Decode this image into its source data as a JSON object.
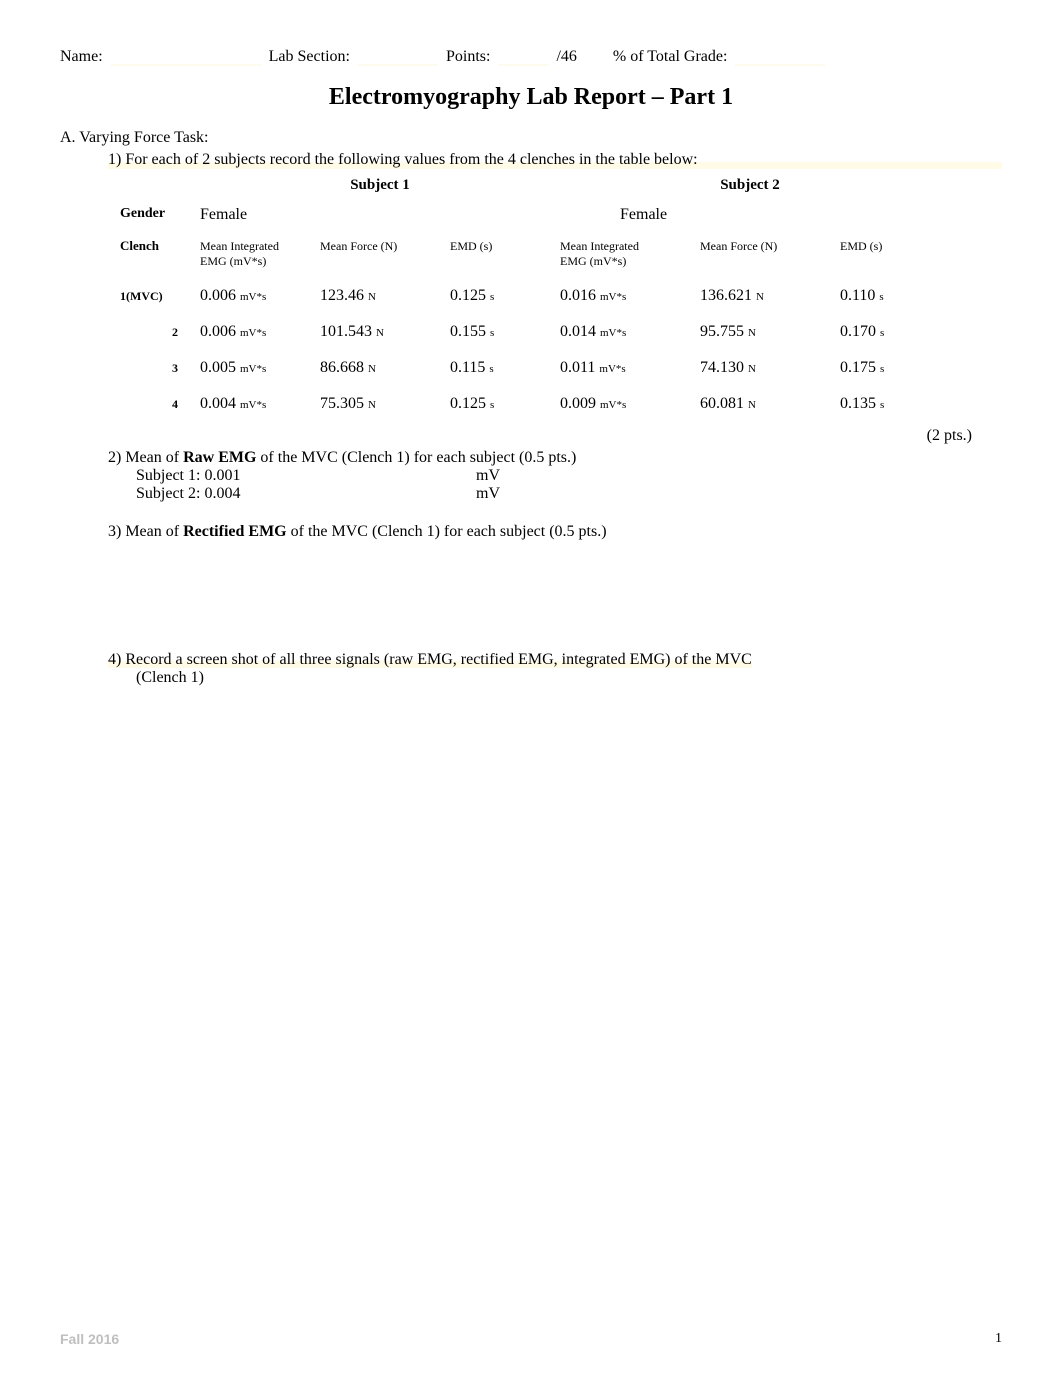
{
  "header": {
    "name_label": "Name:",
    "lab_section_label": "Lab Section:",
    "points_label": "Points:",
    "points_total": "/46",
    "pct_label": "% of Total Grade:"
  },
  "title": "Electromyography Lab Report – Part 1",
  "sectionA": {
    "heading": "A. Varying Force Task:",
    "q1": "1)  For each of 2 subjects record the following values from the 4 clenches in the table below:"
  },
  "table": {
    "subject1_label": "Subject 1",
    "subject2_label": "Subject 2",
    "gender_label": "Gender",
    "gender_s1": "Female",
    "gender_s2": "Female",
    "col_clench": "Clench",
    "col_mi": "Mean Integrated",
    "col_mi2": "EMG (mV*s)",
    "col_force": "Mean Force (N)",
    "col_emd": "EMD (s)",
    "rows": [
      {
        "label": "1(MVC)",
        "s1_mi": "0.006",
        "s1_mi_u": "mV*s",
        "s1_f": "123.46",
        "s1_f_u": "N",
        "s1_e": "0.125",
        "s1_e_u": "s",
        "s2_mi": "0.016",
        "s2_mi_u": "mV*s",
        "s2_f": "136.621",
        "s2_f_u": "N",
        "s2_e": "0.110",
        "s2_e_u": "s"
      },
      {
        "label": "2",
        "s1_mi": "0.006",
        "s1_mi_u": "mV*s",
        "s1_f": "101.543",
        "s1_f_u": "N",
        "s1_e": "0.155",
        "s1_e_u": "s",
        "s2_mi": "0.014",
        "s2_mi_u": "mV*s",
        "s2_f": "95.755",
        "s2_f_u": "N",
        "s2_e": "0.170",
        "s2_e_u": "s"
      },
      {
        "label": "3",
        "s1_mi": "0.005",
        "s1_mi_u": "mV*s",
        "s1_f": "86.668",
        "s1_f_u": "N",
        "s1_e": "0.115",
        "s1_e_u": "s",
        "s2_mi": "0.011",
        "s2_mi_u": "mV*s",
        "s2_f": "74.130",
        "s2_f_u": "N",
        "s2_e": "0.175",
        "s2_e_u": "s"
      },
      {
        "label": "4",
        "s1_mi": "0.004",
        "s1_mi_u": "mV*s",
        "s1_f": "75.305",
        "s1_f_u": "N",
        "s1_e": "0.125",
        "s1_e_u": "s",
        "s2_mi": "0.009",
        "s2_mi_u": "mV*s",
        "s2_f": "60.081",
        "s2_f_u": "N",
        "s2_e": "0.135",
        "s2_e_u": "s"
      }
    ]
  },
  "pts_note": "(2 pts.)",
  "q2": {
    "line": "2)  Mean of ",
    "bold": "Raw EMG",
    "rest": " of the MVC (Clench 1) for each subject (0.5 pts.)",
    "s1_label": "Subject 1: 0.001",
    "s1_unit": "mV",
    "s2_label": "Subject 2: 0.004",
    "s2_unit": "mV"
  },
  "q3": {
    "line": "3)  Mean of ",
    "bold": "Rectified EMG",
    "rest": " of the MVC (Clench 1) for each subject (0.5 pts.)"
  },
  "q4": {
    "line_a": "4)  Record a screen shot of all three signals (raw EMG, rectified EMG, integrated EMG) of the MVC",
    "line_b": "(Clench 1)"
  },
  "footer": {
    "semester": "Fall 2016",
    "page": "1"
  },
  "colors": {
    "text": "#000000",
    "footer_grey": "#bfbfbf",
    "background": "#ffffff"
  },
  "fontsizes": {
    "title": 24,
    "body": 16,
    "colhdr": 12,
    "unit": 11,
    "footer": 14
  }
}
